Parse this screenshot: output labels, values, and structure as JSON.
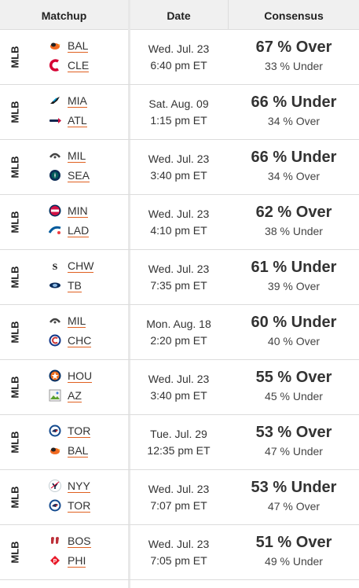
{
  "header": {
    "matchup": "Matchup",
    "date": "Date",
    "consensus": "Consensus"
  },
  "rows": [
    {
      "league": "MLB",
      "team1": {
        "abbr": "BAL",
        "icon": "orioles-logo-icon"
      },
      "team2": {
        "abbr": "CLE",
        "icon": "guardians-logo-icon"
      },
      "date": "Wed. Jul. 23",
      "time": "6:40 pm ET",
      "main": "67 % Over",
      "sub": "33 % Under"
    },
    {
      "league": "MLB",
      "team1": {
        "abbr": "MIA",
        "icon": "marlins-logo-icon"
      },
      "team2": {
        "abbr": "ATL",
        "icon": "braves-logo-icon"
      },
      "date": "Sat. Aug. 09",
      "time": "1:15 pm ET",
      "main": "66 % Under",
      "sub": "34 % Over"
    },
    {
      "league": "MLB",
      "team1": {
        "abbr": "MIL",
        "icon": "brewers-logo-icon"
      },
      "team2": {
        "abbr": "SEA",
        "icon": "mariners-logo-icon"
      },
      "date": "Wed. Jul. 23",
      "time": "3:40 pm ET",
      "main": "66 % Under",
      "sub": "34 % Over"
    },
    {
      "league": "MLB",
      "team1": {
        "abbr": "MIN",
        "icon": "twins-logo-icon"
      },
      "team2": {
        "abbr": "LAD",
        "icon": "dodgers-logo-icon"
      },
      "date": "Wed. Jul. 23",
      "time": "4:10 pm ET",
      "main": "62 % Over",
      "sub": "38 % Under"
    },
    {
      "league": "MLB",
      "team1": {
        "abbr": "CHW",
        "icon": "white-sox-logo-icon"
      },
      "team2": {
        "abbr": "TB",
        "icon": "rays-logo-icon"
      },
      "date": "Wed. Jul. 23",
      "time": "7:35 pm ET",
      "main": "61 % Under",
      "sub": "39 % Over"
    },
    {
      "league": "MLB",
      "team1": {
        "abbr": "MIL",
        "icon": "brewers-logo-icon"
      },
      "team2": {
        "abbr": "CHC",
        "icon": "cubs-logo-icon"
      },
      "date": "Mon. Aug. 18",
      "time": "2:20 pm ET",
      "main": "60 % Under",
      "sub": "40 % Over"
    },
    {
      "league": "MLB",
      "team1": {
        "abbr": "HOU",
        "icon": "astros-logo-icon"
      },
      "team2": {
        "abbr": "AZ",
        "icon": "broken-image-icon"
      },
      "date": "Wed. Jul. 23",
      "time": "3:40 pm ET",
      "main": "55 % Over",
      "sub": "45 % Under"
    },
    {
      "league": "MLB",
      "team1": {
        "abbr": "TOR",
        "icon": "blue-jays-logo-icon"
      },
      "team2": {
        "abbr": "BAL",
        "icon": "orioles-logo-icon"
      },
      "date": "Tue. Jul. 29",
      "time": "12:35 pm ET",
      "main": "53 % Over",
      "sub": "47 % Under"
    },
    {
      "league": "MLB",
      "team1": {
        "abbr": "NYY",
        "icon": "yankees-logo-icon"
      },
      "team2": {
        "abbr": "TOR",
        "icon": "blue-jays-logo-icon"
      },
      "date": "Wed. Jul. 23",
      "time": "7:07 pm ET",
      "main": "53 % Under",
      "sub": "47 % Over"
    },
    {
      "league": "MLB",
      "team1": {
        "abbr": "BOS",
        "icon": "red-sox-logo-icon"
      },
      "team2": {
        "abbr": "PHI",
        "icon": "phillies-logo-icon"
      },
      "date": "Wed. Jul. 23",
      "time": "7:05 pm ET",
      "main": "51 % Over",
      "sub": "49 % Under"
    }
  ]
}
